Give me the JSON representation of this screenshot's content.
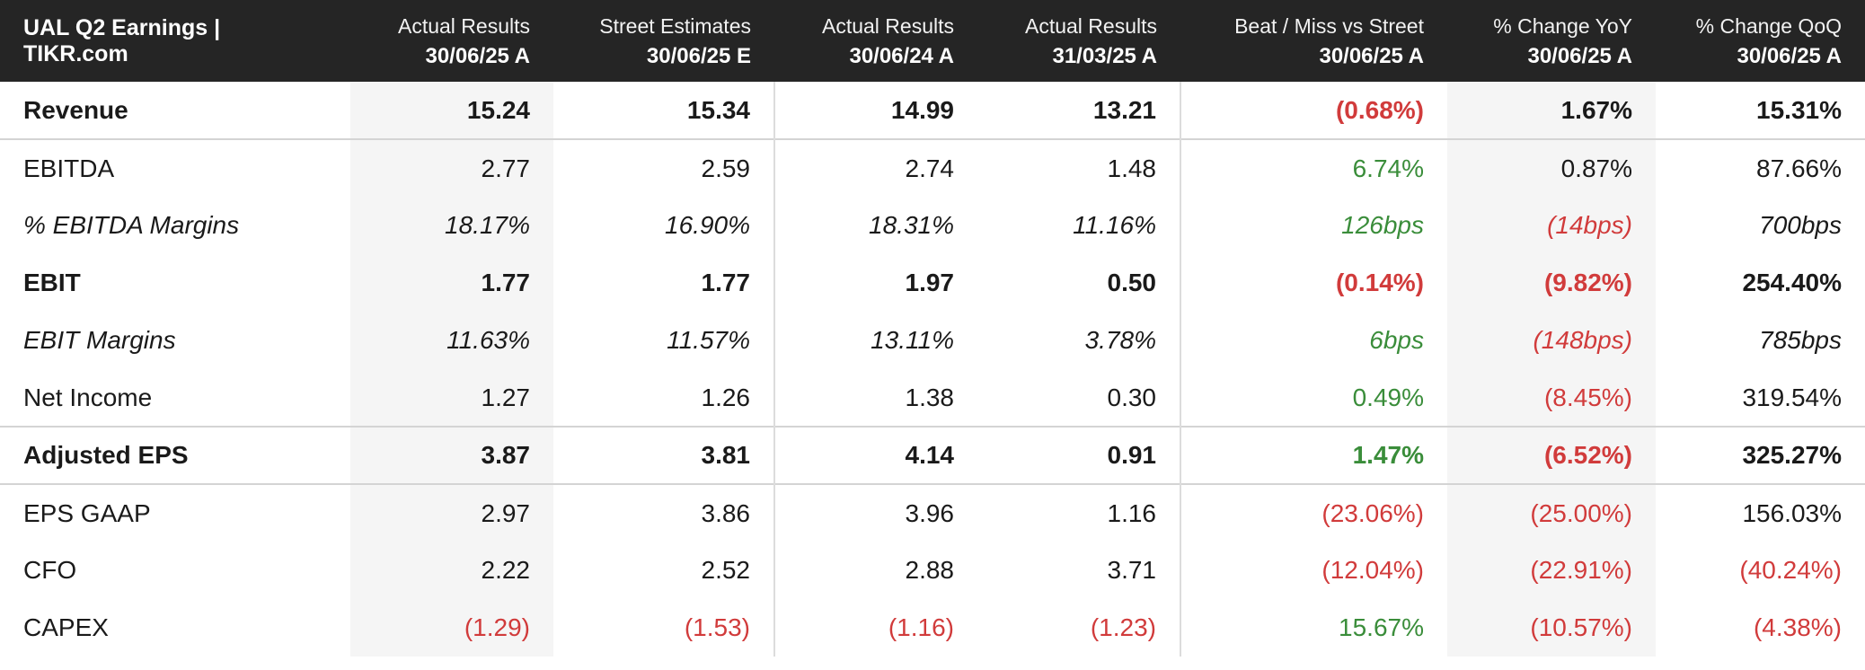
{
  "header": {
    "title": "UAL Q2 Earnings | TIKR.com",
    "columns": [
      {
        "top": "Actual Results",
        "bottom": "30/06/25 A"
      },
      {
        "top": "Street Estimates",
        "bottom": "30/06/25 E"
      },
      {
        "top": "Actual Results",
        "bottom": "30/06/24 A"
      },
      {
        "top": "Actual Results",
        "bottom": "31/03/25 A"
      },
      {
        "top": "Beat / Miss vs Street",
        "bottom": "30/06/25 A"
      },
      {
        "top": "% Change YoY",
        "bottom": "30/06/25 A"
      },
      {
        "top": "% Change QoQ",
        "bottom": "30/06/25 A"
      }
    ]
  },
  "colors": {
    "header_bg": "#252525",
    "negative": "#d13b3b",
    "positive": "#3a8d3a",
    "shaded_column": "#f5f5f5"
  },
  "rows": [
    {
      "label": "Revenue",
      "cells": [
        "15.24",
        "15.34",
        "14.99",
        "13.21",
        "(0.68%)",
        "1.67%",
        "15.31%"
      ]
    },
    {
      "label": "EBITDA",
      "cells": [
        "2.77",
        "2.59",
        "2.74",
        "1.48",
        "6.74%",
        "0.87%",
        "87.66%"
      ]
    },
    {
      "label": "% EBITDA Margins",
      "cells": [
        "18.17%",
        "16.90%",
        "18.31%",
        "11.16%",
        "126bps",
        "(14bps)",
        "700bps"
      ]
    },
    {
      "label": "EBIT",
      "cells": [
        "1.77",
        "1.77",
        "1.97",
        "0.50",
        "(0.14%)",
        "(9.82%)",
        "254.40%"
      ]
    },
    {
      "label": "EBIT Margins",
      "cells": [
        "11.63%",
        "11.57%",
        "13.11%",
        "3.78%",
        "6bps",
        "(148bps)",
        "785bps"
      ]
    },
    {
      "label": "Net Income",
      "cells": [
        "1.27",
        "1.26",
        "1.38",
        "0.30",
        "0.49%",
        "(8.45%)",
        "319.54%"
      ]
    },
    {
      "label": "Adjusted EPS",
      "cells": [
        "3.87",
        "3.81",
        "4.14",
        "0.91",
        "1.47%",
        "(6.52%)",
        "325.27%"
      ]
    },
    {
      "label": "EPS GAAP",
      "cells": [
        "2.97",
        "3.86",
        "3.96",
        "1.16",
        "(23.06%)",
        "(25.00%)",
        "156.03%"
      ]
    },
    {
      "label": "CFO",
      "cells": [
        "2.22",
        "2.52",
        "2.88",
        "3.71",
        "(12.04%)",
        "(22.91%)",
        "(40.24%)"
      ]
    },
    {
      "label": "CAPEX",
      "cells": [
        "(1.29)",
        "(1.53)",
        "(1.16)",
        "(1.23)",
        "15.67%",
        "(10.57%)",
        "(4.38%)"
      ]
    }
  ]
}
